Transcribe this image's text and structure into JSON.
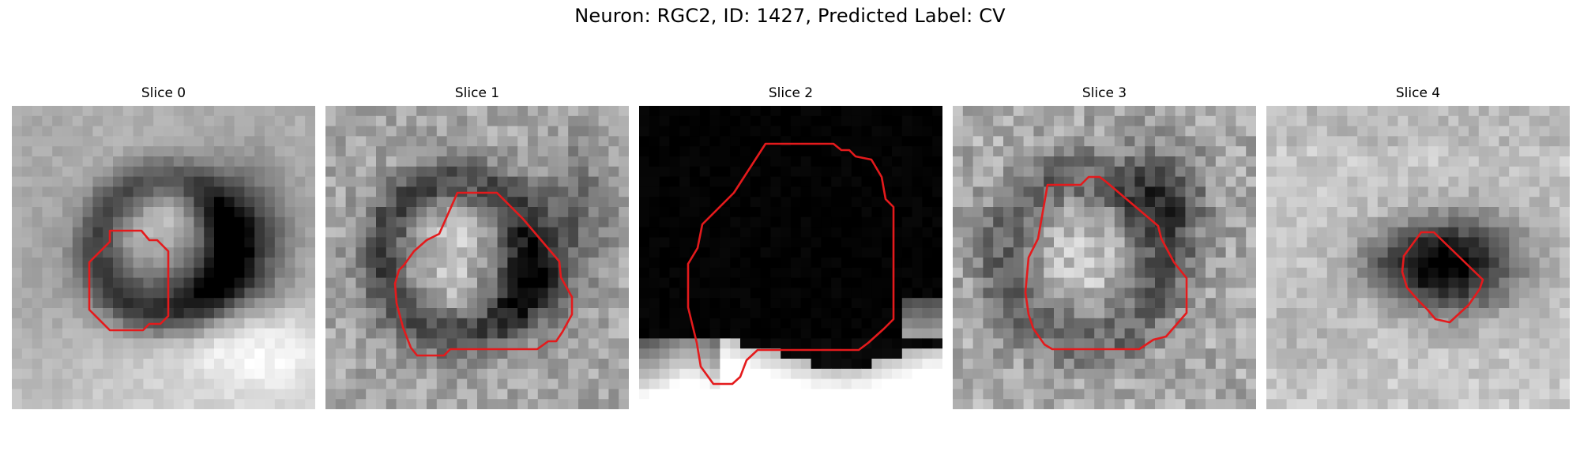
{
  "figure": {
    "title": "Neuron: RGC2, ID: 1427, Predicted Label: CV",
    "outline_color": "#e41a1c",
    "colormap": "gray"
  },
  "panels": [
    {
      "title": "Slice 0"
    },
    {
      "title": "Slice 1"
    },
    {
      "title": "Slice 2"
    },
    {
      "title": "Slice 3"
    },
    {
      "title": "Slice 4"
    }
  ]
}
